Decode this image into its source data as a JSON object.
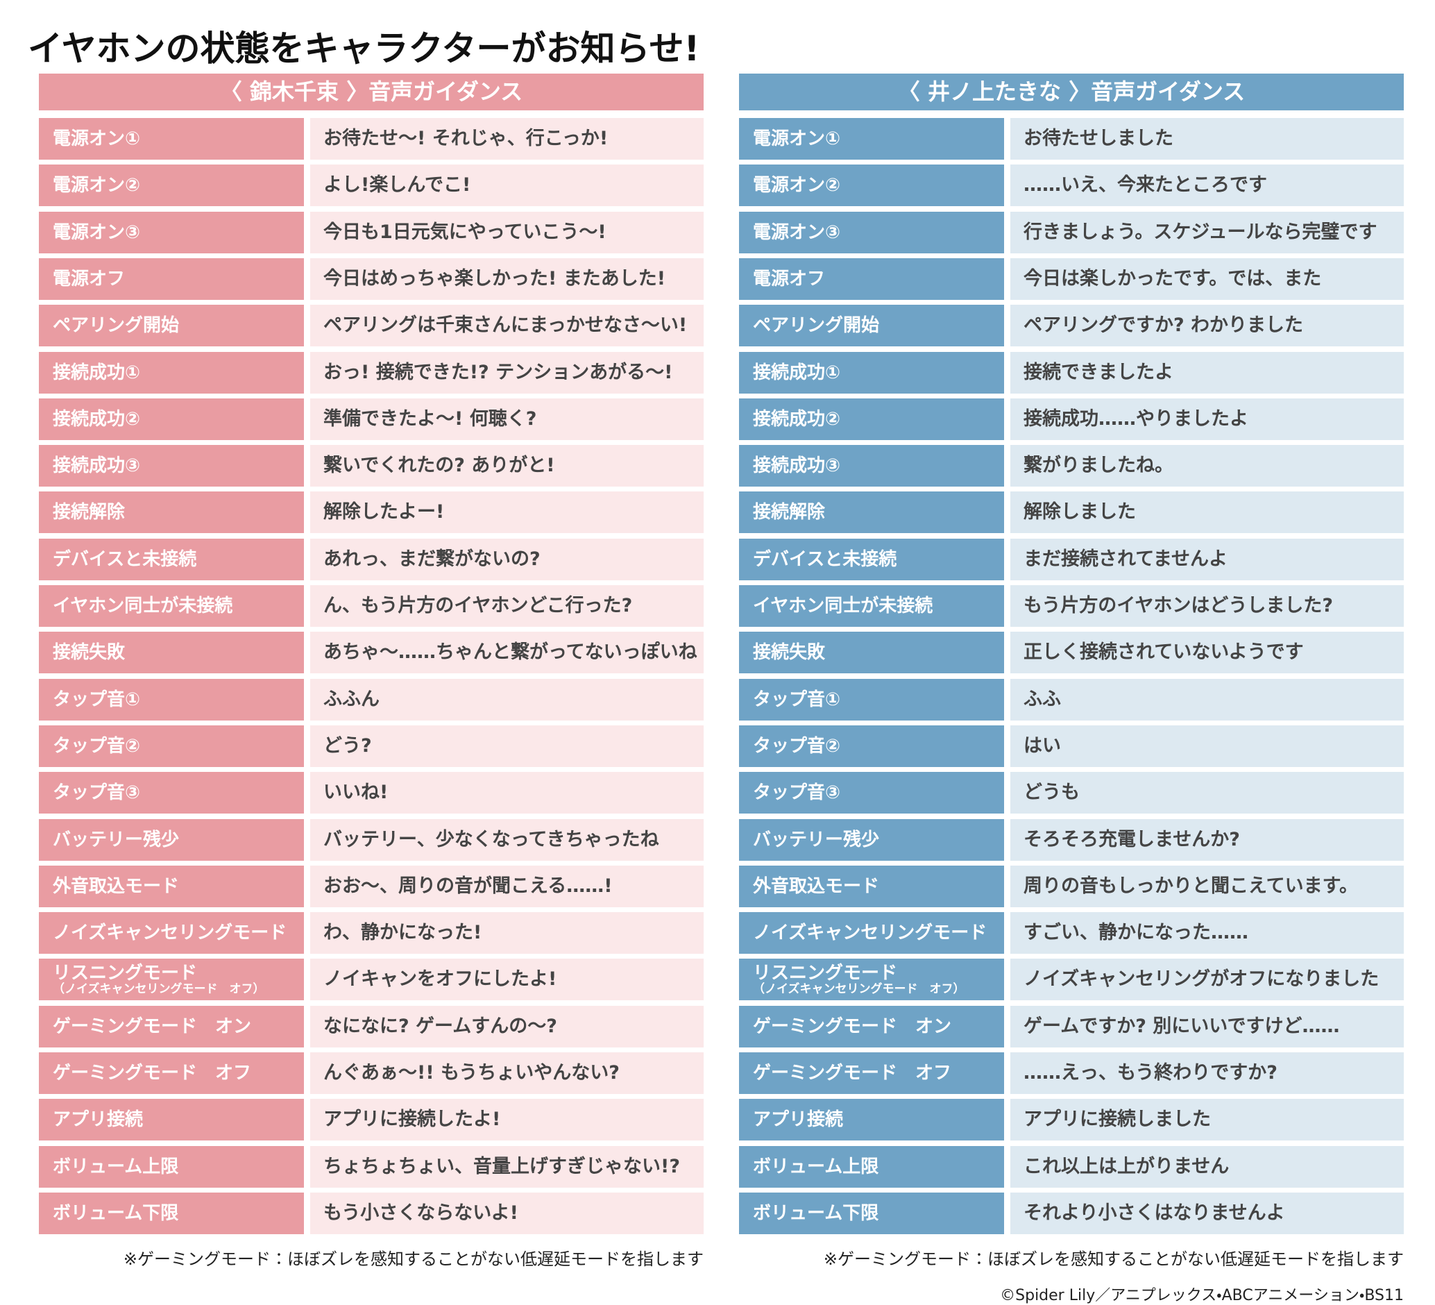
{
  "title": "イヤホンの状態をキャラクターがお知らせ!",
  "tables": [
    {
      "header": "〈 錦木千束 〉音声ガイダンス",
      "note": "※ゲーミングモード：ほぼズレを感知することがない低遅延モードを指します",
      "rows": [
        {
          "label": "電源オン①",
          "text": "お待たせ〜! それじゃ、行こっか!"
        },
        {
          "label": "電源オン②",
          "text": "よし!楽しんでこ!"
        },
        {
          "label": "電源オン③",
          "text": "今日も1日元気にやっていこう〜!"
        },
        {
          "label": "電源オフ",
          "text": "今日はめっちゃ楽しかった! またあした!"
        },
        {
          "label": "ペアリング開始",
          "text": "ペアリングは千束さんにまっかせなさ〜い!"
        },
        {
          "label": "接続成功①",
          "text": "おっ! 接続できた!? テンションあがる〜!"
        },
        {
          "label": "接続成功②",
          "text": "準備できたよ〜! 何聴く?"
        },
        {
          "label": "接続成功③",
          "text": "繋いでくれたの? ありがと!"
        },
        {
          "label": "接続解除",
          "text": "解除したよー!"
        },
        {
          "label": "デバイスと未接続",
          "text": "あれっ、まだ繋がないの?"
        },
        {
          "label": "イヤホン同士が未接続",
          "text": "ん、もう片方のイヤホンどこ行った?"
        },
        {
          "label": "接続失敗",
          "text": "あちゃ〜……ちゃんと繋がってないっぽいね"
        },
        {
          "label": "タップ音①",
          "text": "ふふん"
        },
        {
          "label": "タップ音②",
          "text": "どう?"
        },
        {
          "label": "タップ音③",
          "text": "いいね!"
        },
        {
          "label": "バッテリー残少",
          "text": "バッテリー、少なくなってきちゃったね"
        },
        {
          "label": "外音取込モード",
          "text": "おお〜、周りの音が聞こえる……!"
        },
        {
          "label": "ノイズキャンセリングモード",
          "text": "わ、静かになった!"
        },
        {
          "label": "リスニングモード",
          "sublabel": "（ノイズキャンセリングモード　オフ）",
          "text": "ノイキャンをオフにしたよ!"
        },
        {
          "label": "ゲーミングモード　オン",
          "text": "なになに? ゲームすんの〜?"
        },
        {
          "label": "ゲーミングモード　オフ",
          "text": "んぐあぁ〜!! もうちょいやんない?"
        },
        {
          "label": "アプリ接続",
          "text": "アプリに接続したよ!"
        },
        {
          "label": "ボリューム上限",
          "text": "ちょちょちょい、音量上げすぎじゃない!?"
        },
        {
          "label": "ボリューム下限",
          "text": "もう小さくならないよ!"
        }
      ]
    },
    {
      "header": "〈 井ノ上たきな 〉音声ガイダンス",
      "note": "※ゲーミングモード：ほぼズレを感知することがない低遅延モードを指します",
      "rows": [
        {
          "label": "電源オン①",
          "text": "お待たせしました"
        },
        {
          "label": "電源オン②",
          "text": "……いえ、今来たところです"
        },
        {
          "label": "電源オン③",
          "text": "行きましょう。スケジュールなら完璧です"
        },
        {
          "label": "電源オフ",
          "text": "今日は楽しかったです。では、また"
        },
        {
          "label": "ペアリング開始",
          "text": "ペアリングですか? わかりました"
        },
        {
          "label": "接続成功①",
          "text": "接続できましたよ"
        },
        {
          "label": "接続成功②",
          "text": "接続成功……やりましたよ"
        },
        {
          "label": "接続成功③",
          "text": "繋がりましたね。"
        },
        {
          "label": "接続解除",
          "text": "解除しました"
        },
        {
          "label": "デバイスと未接続",
          "text": "まだ接続されてませんよ"
        },
        {
          "label": "イヤホン同士が未接続",
          "text": "もう片方のイヤホンはどうしました?"
        },
        {
          "label": "接続失敗",
          "text": "正しく接続されていないようです"
        },
        {
          "label": "タップ音①",
          "text": "ふふ"
        },
        {
          "label": "タップ音②",
          "text": "はい"
        },
        {
          "label": "タップ音③",
          "text": "どうも"
        },
        {
          "label": "バッテリー残少",
          "text": "そろそろ充電しませんか?"
        },
        {
          "label": "外音取込モード",
          "text": "周りの音もしっかりと聞こえています。"
        },
        {
          "label": "ノイズキャンセリングモード",
          "text": "すごい、静かになった……"
        },
        {
          "label": "リスニングモード",
          "sublabel": "（ノイズキャンセリングモード　オフ）",
          "text": "ノイズキャンセリングがオフになりました"
        },
        {
          "label": "ゲーミングモード　オン",
          "text": "ゲームですか? 別にいいですけど……"
        },
        {
          "label": "ゲーミングモード　オフ",
          "text": "……えっ、もう終わりですか?"
        },
        {
          "label": "アプリ接続",
          "text": "アプリに接続しました"
        },
        {
          "label": "ボリューム上限",
          "text": "これ以上は上がりません"
        },
        {
          "label": "ボリューム下限",
          "text": "それより小さくはなりませんよ"
        }
      ]
    }
  ],
  "copyright": "©Spider Lily／アニプレックス・ABCアニメーション・BS11"
}
